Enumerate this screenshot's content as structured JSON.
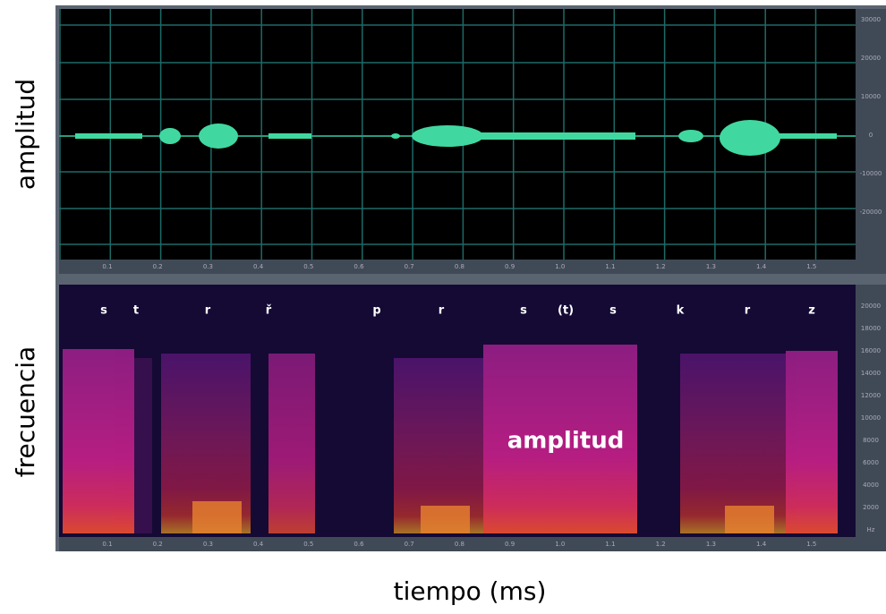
{
  "labels": {
    "amplitude_axis": "amplitud",
    "frequency_axis": "frecuencia",
    "time_axis": "tiempo (ms)",
    "overlay": "amplitud"
  },
  "phonemes": [
    "s",
    "t",
    "r",
    "ř",
    "p",
    "r",
    "s",
    "(t)",
    "s",
    "k",
    "r",
    "z"
  ],
  "time_ticks": [
    "0.1",
    "0.2",
    "0.3",
    "0.4",
    "0.5",
    "0.6",
    "0.7",
    "0.8",
    "0.9",
    "1.0",
    "1.1",
    "1.2",
    "1.3",
    "1.4",
    "1.5"
  ],
  "amplitude_ticks": [
    "30000",
    "20000",
    "10000",
    "0",
    "-10000",
    "-20000"
  ],
  "frequency_ticks": [
    "20000",
    "18000",
    "16000",
    "14000",
    "12000",
    "10000",
    "8000",
    "6000",
    "4000",
    "2000",
    "Hz"
  ]
}
